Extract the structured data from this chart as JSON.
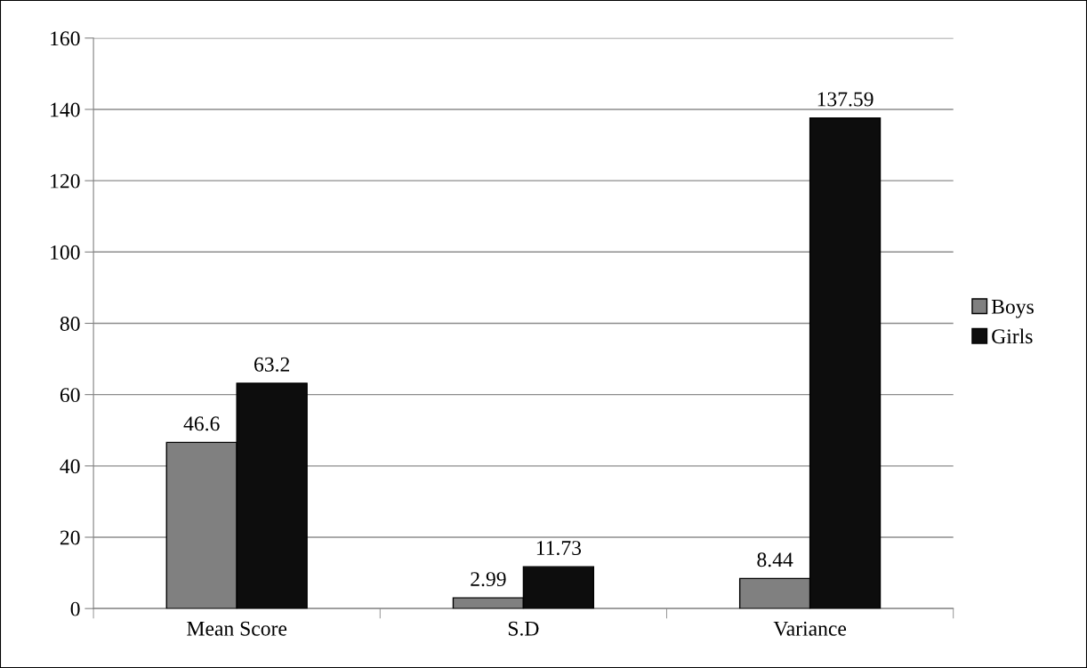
{
  "chart_data": {
    "type": "bar",
    "categories": [
      "Mean Score",
      "S.D",
      "Variance"
    ],
    "series": [
      {
        "name": "Boys",
        "color": "#808080",
        "values": [
          46.6,
          2.99,
          8.44
        ]
      },
      {
        "name": "Girls",
        "color": "#0d0d0d",
        "values": [
          63.2,
          11.73,
          137.59
        ]
      }
    ],
    "ylim": [
      0,
      160
    ],
    "yticks": [
      0,
      20,
      40,
      60,
      80,
      100,
      120,
      140,
      160
    ],
    "grid": "y",
    "legend": "right",
    "data_labels": true
  }
}
